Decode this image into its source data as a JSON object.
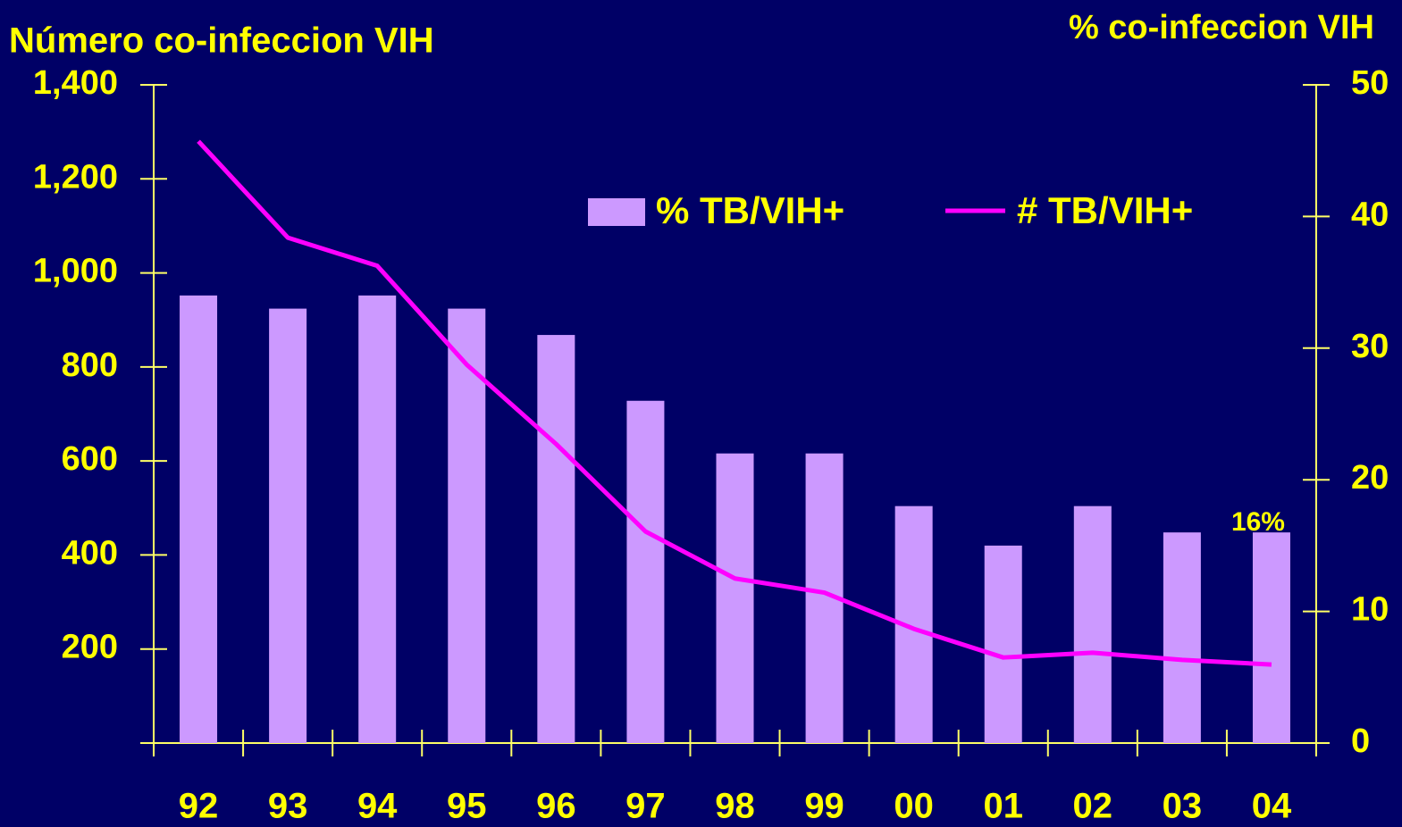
{
  "chart_data": {
    "type": "bar",
    "title": "Número co-infeccion VIH",
    "y2_title": "% co-infeccion VIH",
    "categories": [
      "92",
      "93",
      "94",
      "95",
      "96",
      "97",
      "98",
      "99",
      "00",
      "01",
      "02",
      "03",
      "04"
    ],
    "series": [
      {
        "name": "% TB/VIH+",
        "type": "bar",
        "axis": "y2",
        "color": "#cc99ff",
        "values": [
          34,
          33,
          34,
          33,
          31,
          26,
          22,
          22,
          18,
          15,
          18,
          16,
          16
        ],
        "value_labels": [
          null,
          null,
          null,
          null,
          null,
          null,
          null,
          null,
          null,
          null,
          null,
          null,
          "16%"
        ]
      },
      {
        "name": "# TB/VIH+",
        "type": "line",
        "color": "#ff00ff",
        "values": [
          1280,
          1075,
          1015,
          805,
          636,
          450,
          350,
          320,
          243,
          182,
          192,
          177,
          167
        ]
      }
    ],
    "ylim": [
      0,
      1400
    ],
    "yticks": [
      {
        "value": 200,
        "label": "200"
      },
      {
        "value": 400,
        "label": "400"
      },
      {
        "value": 600,
        "label": "600"
      },
      {
        "value": 800,
        "label": "800"
      },
      {
        "value": 1000,
        "label": "1,000"
      },
      {
        "value": 1200,
        "label": "1,200"
      },
      {
        "value": 1400,
        "label": "1,400"
      }
    ],
    "y2lim": [
      0,
      50
    ],
    "y2ticks": [
      0,
      10,
      20,
      30,
      40,
      50
    ],
    "legend": "top"
  }
}
